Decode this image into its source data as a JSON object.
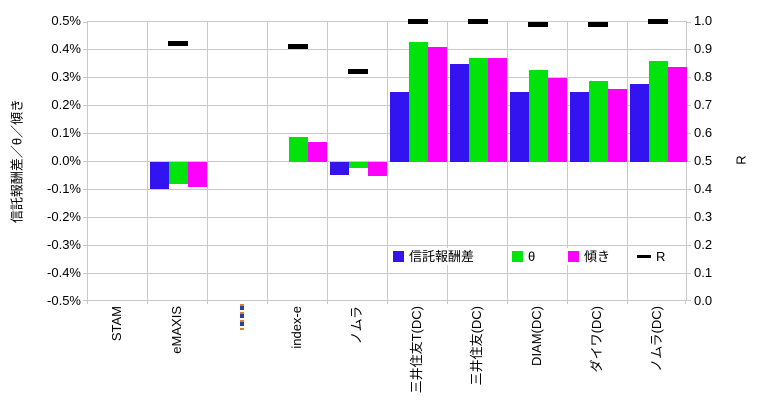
{
  "chart_data": {
    "type": "bar",
    "title": "",
    "categories": [
      "STAM",
      "eMAXIS",
      "",
      "index-e",
      "ノムラ",
      "三井住友T(DC)",
      "三井住友(DC)",
      "DIAM(DC)",
      "ダイワ(DC)",
      "ノムラ(DC)"
    ],
    "category_2_label_glyph": {
      "name": "orange-blue-dashed-tick",
      "colors": [
        "#d2882a",
        "#2840a0"
      ]
    },
    "left_axis": {
      "label": "信託報酬差／θ／傾き",
      "unit": "%",
      "min": -0.5,
      "max": 0.5,
      "ticks": [
        "0.5%",
        "0.4%",
        "0.3%",
        "0.2%",
        "0.1%",
        "0.0%",
        "-0.1%",
        "-0.2%",
        "-0.3%",
        "-0.4%",
        "-0.5%"
      ]
    },
    "right_axis": {
      "label": "R",
      "min": 0.0,
      "max": 1.0,
      "ticks": [
        "1.0",
        "0.9",
        "0.8",
        "0.7",
        "0.6",
        "0.5",
        "0.4",
        "0.3",
        "0.2",
        "0.1",
        "0.0"
      ]
    },
    "series": [
      {
        "id": "fee-diff",
        "name": "信託報酬差",
        "type": "bar",
        "axis": "left",
        "color": "#3314f0",
        "values": [
          null,
          -0.095,
          null,
          null,
          -0.045,
          0.25,
          0.35,
          0.25,
          0.25,
          0.28
        ]
      },
      {
        "id": "theta",
        "name": "θ",
        "type": "bar",
        "axis": "left",
        "color": "#00e40c",
        "values": [
          null,
          -0.08,
          null,
          0.09,
          -0.02,
          0.43,
          0.37,
          0.33,
          0.29,
          0.36
        ]
      },
      {
        "id": "slope",
        "name": "傾き",
        "type": "bar",
        "axis": "left",
        "color": "#ff00ff",
        "values": [
          null,
          -0.09,
          null,
          0.07,
          -0.05,
          0.41,
          0.37,
          0.3,
          0.26,
          0.34
        ]
      },
      {
        "id": "r",
        "name": "R",
        "type": "dash-marker",
        "axis": "right",
        "color": "#000000",
        "values": [
          null,
          0.92,
          null,
          0.91,
          0.82,
          1.0,
          1.0,
          0.99,
          0.99,
          1.0
        ]
      }
    ],
    "legend": {
      "position": "inside-bottom",
      "items": [
        {
          "id": "fee-diff",
          "label": "信託報酬差",
          "marker": "square",
          "color": "#3314f0"
        },
        {
          "id": "theta",
          "label": "θ",
          "marker": "square",
          "color": "#00e40c"
        },
        {
          "id": "slope",
          "label": "傾き",
          "marker": "square",
          "color": "#ff00ff"
        },
        {
          "id": "r",
          "label": "R",
          "marker": "dash",
          "color": "#000000"
        }
      ]
    },
    "grid": {
      "show": true,
      "color": "#c9c9c9"
    }
  }
}
